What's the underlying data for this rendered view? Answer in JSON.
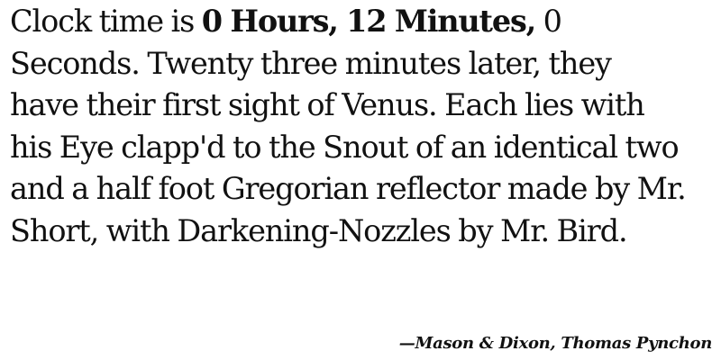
{
  "quote": {
    "line1_prefix": "Clock time is ",
    "line1_bold": "0 Hours, 12 Minutes,",
    "line1_suffix": " 0",
    "line2": "Seconds. Twenty three minutes later, they",
    "line3": "have their first sight of Venus. Each lies with",
    "line4": "his Eye clapp'd to the Snout of an identical two",
    "line5": "and a half foot Gregorian reflector made by Mr.",
    "line6": "Short, with Darkening-Nozzles by Mr. Bird."
  },
  "attribution": {
    "text": "—Mason & Dixon, Thomas Pynchon"
  }
}
